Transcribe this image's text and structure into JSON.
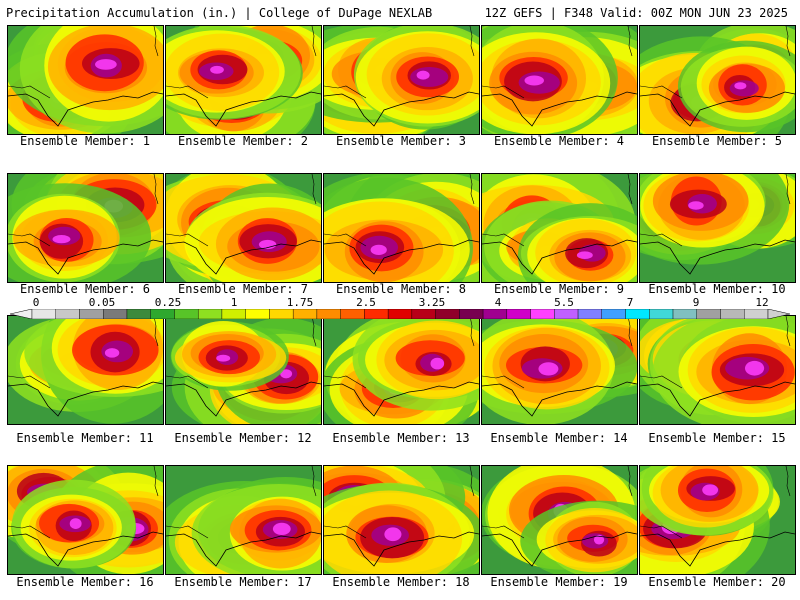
{
  "header": {
    "left": "Precipitation Accumulation (in.) | College of DuPage NEXLAB",
    "right": "12Z GEFS | F348 Valid: 00Z MON JUN 23 2025"
  },
  "colorbar": {
    "tick_labels": [
      "0",
      "0.05",
      "0.25",
      "1",
      "1.75",
      "2.5",
      "3.25",
      "4",
      "5.5",
      "7",
      "9",
      "12"
    ],
    "colors": [
      "#e6e6e6",
      "#c8c8c8",
      "#a0a0a0",
      "#7a7a7a",
      "#3c8a3c",
      "#2ea82e",
      "#58c428",
      "#8ee020",
      "#d0f000",
      "#ffff00",
      "#ffd800",
      "#ffb000",
      "#ff8c00",
      "#ff6000",
      "#ff2a00",
      "#e00000",
      "#b80018",
      "#90002a",
      "#780050",
      "#a00090",
      "#d000c8",
      "#ff40ff",
      "#c060ff",
      "#8080ff",
      "#40a0ff",
      "#00e8ff",
      "#40d8d8",
      "#80c0c0",
      "#a0a0a0",
      "#b8b8b8",
      "#d0d0d0"
    ]
  },
  "panels": [
    {
      "label": "Ensemble Member: 1"
    },
    {
      "label": "Ensemble Member: 2"
    },
    {
      "label": "Ensemble Member: 3"
    },
    {
      "label": "Ensemble Member: 4"
    },
    {
      "label": "Ensemble Member: 5"
    },
    {
      "label": "Ensemble Member: 6"
    },
    {
      "label": "Ensemble Member: 7"
    },
    {
      "label": "Ensemble Member: 8"
    },
    {
      "label": "Ensemble Member: 9"
    },
    {
      "label": "Ensemble Member: 10"
    },
    {
      "label": "Ensemble Member: 11"
    },
    {
      "label": "Ensemble Member: 12"
    },
    {
      "label": "Ensemble Member: 13"
    },
    {
      "label": "Ensemble Member: 14"
    },
    {
      "label": "Ensemble Member: 15"
    },
    {
      "label": "Ensemble Member: 16"
    },
    {
      "label": "Ensemble Member: 17"
    },
    {
      "label": "Ensemble Member: 18"
    },
    {
      "label": "Ensemble Member: 19"
    },
    {
      "label": "Ensemble Member: 20"
    }
  ]
}
